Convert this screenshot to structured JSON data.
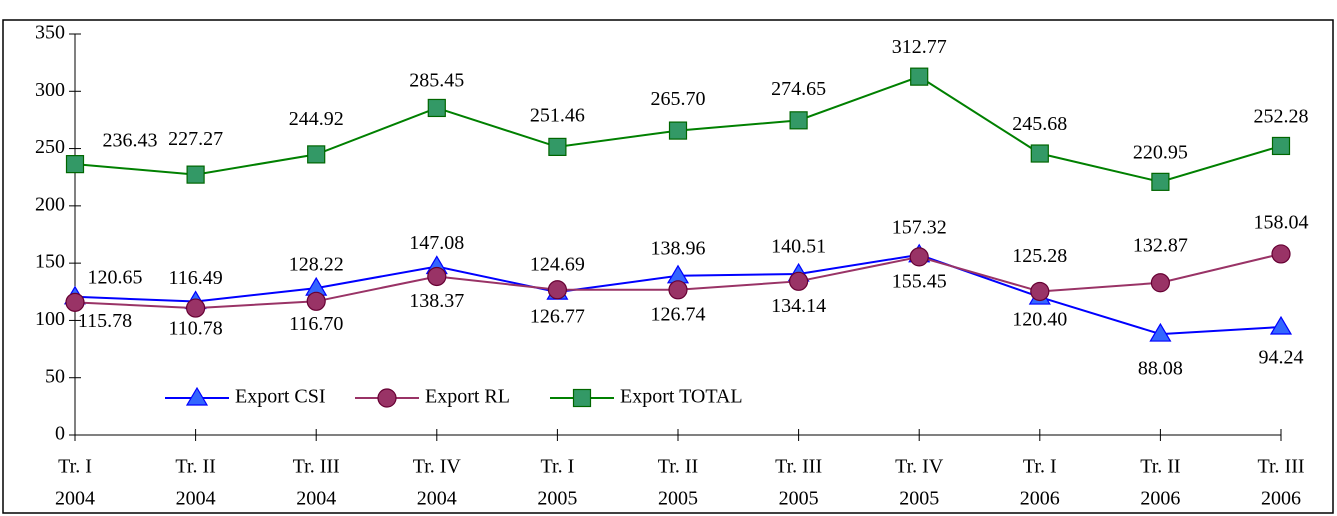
{
  "chart_data": {
    "type": "line",
    "categories": [
      [
        "Tr. I",
        "2004"
      ],
      [
        "Tr. II",
        "2004"
      ],
      [
        "Tr. III",
        "2004"
      ],
      [
        "Tr. IV",
        "2004"
      ],
      [
        "Tr. I",
        "2005"
      ],
      [
        "Tr. II",
        "2005"
      ],
      [
        "Tr. III",
        "2005"
      ],
      [
        "Tr. IV",
        "2005"
      ],
      [
        "Tr. I",
        "2006"
      ],
      [
        "Tr. II",
        "2006"
      ],
      [
        "Tr. III",
        "2006"
      ]
    ],
    "series": [
      {
        "name": "Export CSI",
        "color": "#0000ff",
        "marker": "triangle",
        "marker_color": "#3366ff",
        "values": [
          120.65,
          116.49,
          128.22,
          147.08,
          124.69,
          138.96,
          140.51,
          157.32,
          120.4,
          88.08,
          94.24
        ],
        "value_labels": [
          "120.65",
          "116.49",
          "128.22",
          "147.08",
          "124.69",
          "138.96",
          "140.51",
          "157.32",
          "120.40",
          "88.08",
          "94.24"
        ]
      },
      {
        "name": "Export RL",
        "color": "#993366",
        "marker": "circle",
        "marker_color": "#993366",
        "values": [
          115.78,
          110.78,
          116.7,
          138.37,
          126.77,
          126.74,
          134.14,
          155.45,
          125.28,
          132.87,
          158.04
        ],
        "value_labels": [
          "115.78",
          "110.78",
          "116.70",
          "138.37",
          "126.77",
          "126.74",
          "134.14",
          "155.45",
          "125.28",
          "132.87",
          "158.04"
        ]
      },
      {
        "name": "Export TOTAL",
        "color": "#008000",
        "marker": "square",
        "marker_color": "#339966",
        "values": [
          236.43,
          227.27,
          244.92,
          285.45,
          251.46,
          265.7,
          274.65,
          312.77,
          245.68,
          220.95,
          252.28
        ],
        "value_labels": [
          "236.43",
          "227.27",
          "244.92",
          "285.45",
          "251.46",
          "265.70",
          "274.65",
          "312.77",
          "245.68",
          "220.95",
          "252.28"
        ]
      }
    ],
    "ylim": [
      0,
      350
    ],
    "yticks": [
      0,
      50,
      100,
      150,
      200,
      250,
      300,
      350
    ],
    "grid": false,
    "legend": "lower left"
  }
}
